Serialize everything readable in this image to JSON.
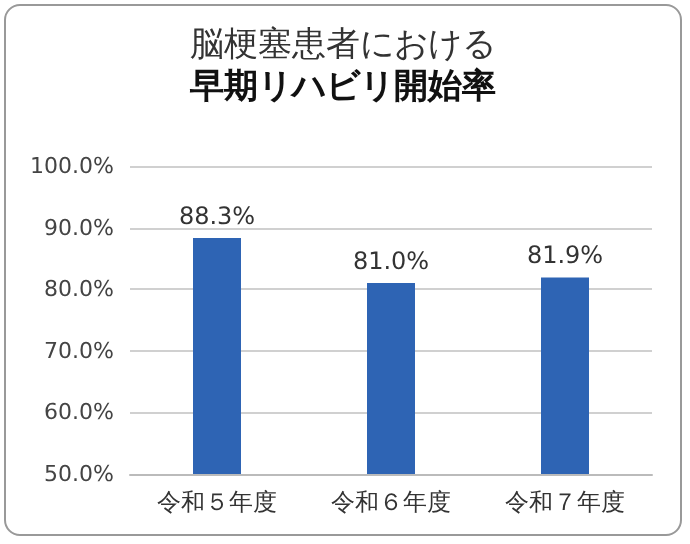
{
  "chart_data": {
    "type": "bar",
    "title": "脳梗塞患者における",
    "subtitle": "早期リハビリ開始率",
    "categories": [
      "令和５年度",
      "令和６年度",
      "令和７年度"
    ],
    "values": [
      88.3,
      81.0,
      81.9
    ],
    "value_labels": [
      "88.3%",
      "81.0%",
      "81.9%"
    ],
    "color": "#2e64b4",
    "ylim": [
      50,
      100
    ],
    "yticks": [
      {
        "value": 50,
        "label": "50.0%"
      },
      {
        "value": 60,
        "label": "60.0%"
      },
      {
        "value": 70,
        "label": "70.0%"
      },
      {
        "value": 80,
        "label": "80.0%"
      },
      {
        "value": 90,
        "label": "90.0%"
      },
      {
        "value": 100,
        "label": "100.0%"
      }
    ],
    "grid": "y"
  }
}
